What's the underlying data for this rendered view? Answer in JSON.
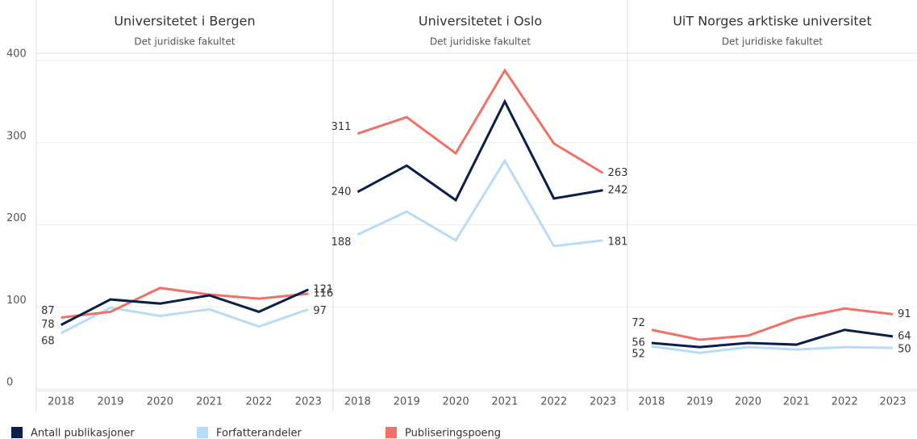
{
  "chart_data": {
    "type": "line",
    "categories": [
      "2018",
      "2019",
      "2020",
      "2021",
      "2022",
      "2023"
    ],
    "ylim": [
      0,
      400
    ],
    "yticks": [
      0,
      100,
      200,
      300,
      400
    ],
    "grid": true,
    "legend": "bottom",
    "series": [
      {
        "name": "Antall publikasjoner",
        "color": "#0c1f4a"
      },
      {
        "name": "Forfatterandeler",
        "color": "#b8dcf7"
      },
      {
        "name": "Publiseringspoeng",
        "color": "#f07266"
      }
    ],
    "panels": [
      {
        "title": "Universitetet i Bergen",
        "subtitle": "Det juridiske fakultet",
        "values": [
          [
            78,
            109,
            104,
            114,
            94,
            121
          ],
          [
            68,
            99,
            89,
            97,
            76,
            97
          ],
          [
            87,
            94,
            123,
            115,
            110,
            116
          ]
        ]
      },
      {
        "title": "Universitetet i Oslo",
        "subtitle": "Det juridiske fakultet",
        "values": [
          [
            240,
            272,
            230,
            350,
            232,
            242
          ],
          [
            188,
            216,
            181,
            278,
            174,
            181
          ],
          [
            311,
            331,
            287,
            388,
            299,
            263
          ]
        ]
      },
      {
        "title": "UiT Norges arktiske universitet",
        "subtitle": "Det juridiske fakultet",
        "values": [
          [
            56,
            51,
            56,
            54,
            72,
            64
          ],
          [
            52,
            44,
            51,
            48,
            51,
            50
          ],
          [
            72,
            60,
            65,
            86,
            98,
            91
          ]
        ]
      }
    ]
  }
}
